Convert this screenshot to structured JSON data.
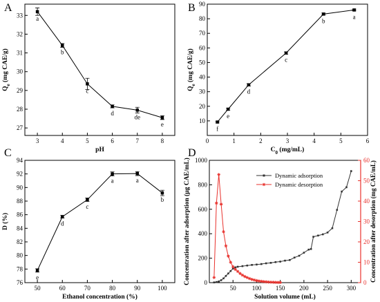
{
  "chart_data": [
    {
      "id": "A",
      "panel_label": "A",
      "type": "line",
      "xlabel": "pH",
      "ylabel": "Q",
      "ylabel_sub": "e",
      "ylabel_unit": " (mg CAE/g)",
      "xlim": [
        2.5,
        8.5
      ],
      "ylim": [
        26.6,
        33.6
      ],
      "x_ticks": [
        3,
        4,
        5,
        6,
        7,
        8
      ],
      "y_ticks": [
        27,
        28,
        29,
        30,
        31,
        32,
        33
      ],
      "grid": false,
      "series": [
        {
          "color": "#000000",
          "marker": "square",
          "points": [
            {
              "x": 3,
              "y": 33.2,
              "err": 0.2,
              "label": "a"
            },
            {
              "x": 4,
              "y": 31.4,
              "err": 0.1,
              "label": "b"
            },
            {
              "x": 5,
              "y": 29.35,
              "err": 0.3,
              "label": "c"
            },
            {
              "x": 6,
              "y": 28.15,
              "err": 0.08,
              "label": "d"
            },
            {
              "x": 7,
              "y": 27.95,
              "err": 0.15,
              "label": "de"
            },
            {
              "x": 8,
              "y": 27.55,
              "err": 0.1,
              "label": "e"
            }
          ]
        }
      ]
    },
    {
      "id": "B",
      "panel_label": "B",
      "type": "line",
      "xlabel": "C",
      "xlabel_sub": "0",
      "xlabel_unit": " (mg/mL)",
      "ylabel": "Q",
      "ylabel_sub": "e",
      "ylabel_unit": " (mg CAE/g)",
      "xlim": [
        0,
        6
      ],
      "ylim": [
        0,
        90
      ],
      "x_ticks": [
        0,
        1,
        2,
        3,
        4,
        5,
        6
      ],
      "y_ticks": [
        10,
        20,
        30,
        40,
        50,
        60,
        70,
        80,
        90
      ],
      "grid": false,
      "series": [
        {
          "color": "#000000",
          "marker": "square",
          "points": [
            {
              "x": 0.38,
              "y": 9.2,
              "err": 0.6,
              "label": "f"
            },
            {
              "x": 0.78,
              "y": 18.0,
              "err": 0.7,
              "label": "e"
            },
            {
              "x": 1.55,
              "y": 34.7,
              "err": 0.8,
              "label": "d"
            },
            {
              "x": 2.95,
              "y": 56.5,
              "err": 0.8,
              "label": "c"
            },
            {
              "x": 4.35,
              "y": 83.2,
              "err": 0.7,
              "label": "b"
            },
            {
              "x": 5.5,
              "y": 86.0,
              "err": 0.6,
              "label": "a"
            }
          ]
        }
      ]
    },
    {
      "id": "C",
      "panel_label": "C",
      "type": "line",
      "xlabel": "Ethanol concentration (%)",
      "ylabel": "D (%)",
      "xlim": [
        45,
        105
      ],
      "ylim": [
        76,
        94
      ],
      "x_ticks": [
        50,
        60,
        70,
        80,
        90,
        100
      ],
      "y_ticks": [
        76,
        78,
        80,
        82,
        84,
        86,
        88,
        90,
        92,
        94
      ],
      "grid": false,
      "series": [
        {
          "color": "#000000",
          "marker": "square",
          "points": [
            {
              "x": 50,
              "y": 77.8,
              "err": 0.25,
              "label": "e"
            },
            {
              "x": 60,
              "y": 85.7,
              "err": 0.2,
              "label": "d"
            },
            {
              "x": 70,
              "y": 88.2,
              "err": 0.25,
              "label": "c"
            },
            {
              "x": 80,
              "y": 92.0,
              "err": 0.3,
              "label": "a"
            },
            {
              "x": 90,
              "y": 92.05,
              "err": 0.3,
              "label": "a"
            },
            {
              "x": 100,
              "y": 89.2,
              "err": 0.4,
              "label": "b"
            }
          ]
        }
      ]
    },
    {
      "id": "D",
      "panel_label": "D",
      "type": "line",
      "xlabel": "Solution volume (mL)",
      "ylabel": "Concentration after adsorption (μg CAE/mL)",
      "ylabel_right": "Concentration after desorption (mg CAE/mL)",
      "xlim": [
        0,
        320
      ],
      "ylim": [
        0,
        1000
      ],
      "ylim_right": [
        0,
        60
      ],
      "x_ticks": [
        50,
        100,
        150,
        200,
        250,
        300
      ],
      "y_ticks": [
        0,
        200,
        400,
        600,
        800,
        1000
      ],
      "y_ticks_right": [
        0,
        10,
        20,
        30,
        40,
        50,
        60
      ],
      "axis_color_right": "#e8312c",
      "legend_position": "top-center",
      "grid": false,
      "series": [
        {
          "name": "Dynamic adsorption",
          "axis": "left",
          "color": "#333333",
          "marker": "square",
          "x": [
            10,
            15,
            20,
            25,
            30,
            35,
            40,
            45,
            50,
            55,
            60,
            70,
            80,
            90,
            100,
            110,
            120,
            130,
            140,
            150,
            160,
            170,
            180,
            190,
            200,
            210,
            215,
            220,
            230,
            240,
            250,
            260,
            270,
            280,
            290,
            300
          ],
          "y": [
            2,
            5,
            10,
            20,
            35,
            55,
            75,
            95,
            115,
            125,
            130,
            135,
            140,
            145,
            148,
            152,
            158,
            162,
            168,
            172,
            180,
            185,
            205,
            220,
            245,
            270,
            275,
            375,
            385,
            395,
            410,
            445,
            595,
            745,
            780,
            912
          ]
        },
        {
          "name": "Dynamic desorption",
          "axis": "right",
          "color": "#e8312c",
          "marker": "star",
          "x": [
            10,
            15,
            20,
            25,
            30,
            35,
            40,
            45,
            50,
            55,
            60,
            65,
            70,
            75,
            80,
            85,
            90,
            95,
            100,
            105,
            110,
            115,
            120,
            125,
            130,
            135,
            140,
            145,
            150
          ],
          "y": [
            2.5,
            39,
            53,
            38.5,
            25,
            18,
            13,
            10,
            7.8,
            6.5,
            5.5,
            4.5,
            3.7,
            3.0,
            2.5,
            2.0,
            1.6,
            1.3,
            1.0,
            0.8,
            0.65,
            0.5,
            0.4,
            0.3,
            0.25,
            0.2,
            0.15,
            0.1,
            0.1
          ]
        }
      ]
    }
  ]
}
